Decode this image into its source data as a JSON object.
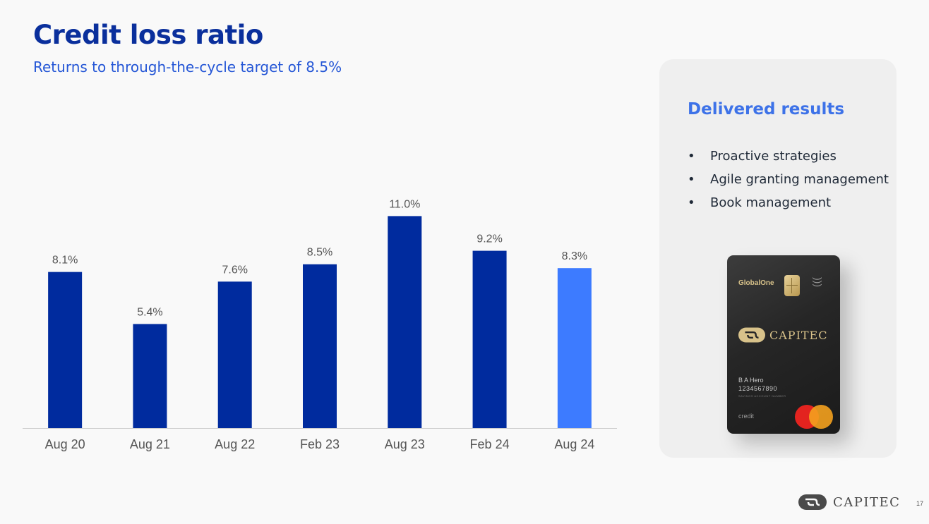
{
  "header": {
    "title": "Credit loss ratio",
    "subtitle": "Returns to through-the-cycle target of 8.5%"
  },
  "chart_data": {
    "type": "bar",
    "categories": [
      "Aug 20",
      "Aug 21",
      "Aug 22",
      "Feb 23",
      "Aug 23",
      "Feb 24",
      "Aug 24"
    ],
    "values": [
      8.1,
      5.4,
      7.6,
      8.5,
      11.0,
      9.2,
      8.3
    ],
    "data_labels": [
      "8.1%",
      "5.4%",
      "7.6%",
      "8.5%",
      "11.0%",
      "9.2%",
      "8.3%"
    ],
    "ylim": [
      0,
      11.6
    ],
    "grid": false,
    "bar_colors": [
      "#002b9e",
      "#002b9e",
      "#002b9e",
      "#002b9e",
      "#002b9e",
      "#002b9e",
      "#3d7bff"
    ]
  },
  "panel": {
    "heading": "Delivered results",
    "bullet_glyph": "•",
    "bullets": [
      "Proactive strategies",
      "Agile granting management",
      "Book management"
    ]
  },
  "card": {
    "brand": "GlobalOne",
    "bank": "CAPITEC",
    "holder": "B A Hero",
    "number": "1234567890",
    "account_label": "SAVINGS ACCOUNT NUMBER",
    "type": "credit"
  },
  "footer": {
    "brand": "CAPITEC",
    "page_number": "17"
  },
  "colors": {
    "title": "#0a2f9c",
    "subtitle": "#2456d6",
    "bar": "#002b9e",
    "bar_highlight": "#3d7bff",
    "panel_heading": "#3d72e8"
  }
}
